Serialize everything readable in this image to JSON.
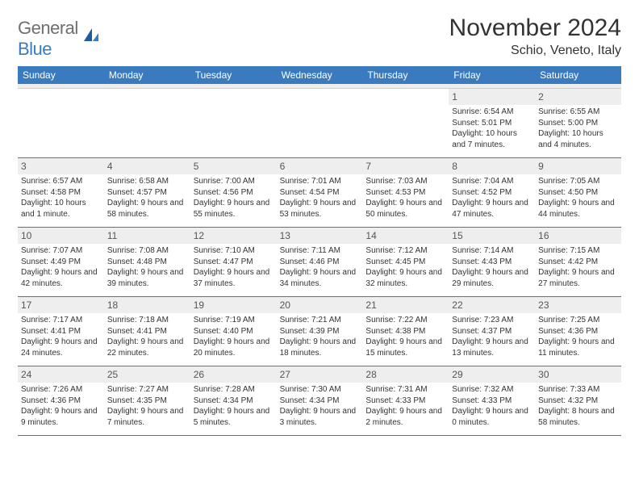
{
  "brand": {
    "name_main": "General",
    "name_sub": "Blue",
    "icon_color_dark": "#1f5c9e",
    "icon_color_light": "#3a7bbf"
  },
  "title": {
    "month": "November 2024",
    "location": "Schio, Veneto, Italy"
  },
  "colors": {
    "header_bg": "#3a7bbf",
    "header_text": "#ffffff",
    "daynum_bg": "#eeeeee",
    "daynum_text": "#555555",
    "body_text": "#333333",
    "row_divider": "#3a7bbf"
  },
  "weekdays": [
    "Sunday",
    "Monday",
    "Tuesday",
    "Wednesday",
    "Thursday",
    "Friday",
    "Saturday"
  ],
  "weeks": [
    [
      null,
      null,
      null,
      null,
      null,
      {
        "n": "1",
        "sunrise": "Sunrise: 6:54 AM",
        "sunset": "Sunset: 5:01 PM",
        "daylight": "Daylight: 10 hours and 7 minutes."
      },
      {
        "n": "2",
        "sunrise": "Sunrise: 6:55 AM",
        "sunset": "Sunset: 5:00 PM",
        "daylight": "Daylight: 10 hours and 4 minutes."
      }
    ],
    [
      {
        "n": "3",
        "sunrise": "Sunrise: 6:57 AM",
        "sunset": "Sunset: 4:58 PM",
        "daylight": "Daylight: 10 hours and 1 minute."
      },
      {
        "n": "4",
        "sunrise": "Sunrise: 6:58 AM",
        "sunset": "Sunset: 4:57 PM",
        "daylight": "Daylight: 9 hours and 58 minutes."
      },
      {
        "n": "5",
        "sunrise": "Sunrise: 7:00 AM",
        "sunset": "Sunset: 4:56 PM",
        "daylight": "Daylight: 9 hours and 55 minutes."
      },
      {
        "n": "6",
        "sunrise": "Sunrise: 7:01 AM",
        "sunset": "Sunset: 4:54 PM",
        "daylight": "Daylight: 9 hours and 53 minutes."
      },
      {
        "n": "7",
        "sunrise": "Sunrise: 7:03 AM",
        "sunset": "Sunset: 4:53 PM",
        "daylight": "Daylight: 9 hours and 50 minutes."
      },
      {
        "n": "8",
        "sunrise": "Sunrise: 7:04 AM",
        "sunset": "Sunset: 4:52 PM",
        "daylight": "Daylight: 9 hours and 47 minutes."
      },
      {
        "n": "9",
        "sunrise": "Sunrise: 7:05 AM",
        "sunset": "Sunset: 4:50 PM",
        "daylight": "Daylight: 9 hours and 44 minutes."
      }
    ],
    [
      {
        "n": "10",
        "sunrise": "Sunrise: 7:07 AM",
        "sunset": "Sunset: 4:49 PM",
        "daylight": "Daylight: 9 hours and 42 minutes."
      },
      {
        "n": "11",
        "sunrise": "Sunrise: 7:08 AM",
        "sunset": "Sunset: 4:48 PM",
        "daylight": "Daylight: 9 hours and 39 minutes."
      },
      {
        "n": "12",
        "sunrise": "Sunrise: 7:10 AM",
        "sunset": "Sunset: 4:47 PM",
        "daylight": "Daylight: 9 hours and 37 minutes."
      },
      {
        "n": "13",
        "sunrise": "Sunrise: 7:11 AM",
        "sunset": "Sunset: 4:46 PM",
        "daylight": "Daylight: 9 hours and 34 minutes."
      },
      {
        "n": "14",
        "sunrise": "Sunrise: 7:12 AM",
        "sunset": "Sunset: 4:45 PM",
        "daylight": "Daylight: 9 hours and 32 minutes."
      },
      {
        "n": "15",
        "sunrise": "Sunrise: 7:14 AM",
        "sunset": "Sunset: 4:43 PM",
        "daylight": "Daylight: 9 hours and 29 minutes."
      },
      {
        "n": "16",
        "sunrise": "Sunrise: 7:15 AM",
        "sunset": "Sunset: 4:42 PM",
        "daylight": "Daylight: 9 hours and 27 minutes."
      }
    ],
    [
      {
        "n": "17",
        "sunrise": "Sunrise: 7:17 AM",
        "sunset": "Sunset: 4:41 PM",
        "daylight": "Daylight: 9 hours and 24 minutes."
      },
      {
        "n": "18",
        "sunrise": "Sunrise: 7:18 AM",
        "sunset": "Sunset: 4:41 PM",
        "daylight": "Daylight: 9 hours and 22 minutes."
      },
      {
        "n": "19",
        "sunrise": "Sunrise: 7:19 AM",
        "sunset": "Sunset: 4:40 PM",
        "daylight": "Daylight: 9 hours and 20 minutes."
      },
      {
        "n": "20",
        "sunrise": "Sunrise: 7:21 AM",
        "sunset": "Sunset: 4:39 PM",
        "daylight": "Daylight: 9 hours and 18 minutes."
      },
      {
        "n": "21",
        "sunrise": "Sunrise: 7:22 AM",
        "sunset": "Sunset: 4:38 PM",
        "daylight": "Daylight: 9 hours and 15 minutes."
      },
      {
        "n": "22",
        "sunrise": "Sunrise: 7:23 AM",
        "sunset": "Sunset: 4:37 PM",
        "daylight": "Daylight: 9 hours and 13 minutes."
      },
      {
        "n": "23",
        "sunrise": "Sunrise: 7:25 AM",
        "sunset": "Sunset: 4:36 PM",
        "daylight": "Daylight: 9 hours and 11 minutes."
      }
    ],
    [
      {
        "n": "24",
        "sunrise": "Sunrise: 7:26 AM",
        "sunset": "Sunset: 4:36 PM",
        "daylight": "Daylight: 9 hours and 9 minutes."
      },
      {
        "n": "25",
        "sunrise": "Sunrise: 7:27 AM",
        "sunset": "Sunset: 4:35 PM",
        "daylight": "Daylight: 9 hours and 7 minutes."
      },
      {
        "n": "26",
        "sunrise": "Sunrise: 7:28 AM",
        "sunset": "Sunset: 4:34 PM",
        "daylight": "Daylight: 9 hours and 5 minutes."
      },
      {
        "n": "27",
        "sunrise": "Sunrise: 7:30 AM",
        "sunset": "Sunset: 4:34 PM",
        "daylight": "Daylight: 9 hours and 3 minutes."
      },
      {
        "n": "28",
        "sunrise": "Sunrise: 7:31 AM",
        "sunset": "Sunset: 4:33 PM",
        "daylight": "Daylight: 9 hours and 2 minutes."
      },
      {
        "n": "29",
        "sunrise": "Sunrise: 7:32 AM",
        "sunset": "Sunset: 4:33 PM",
        "daylight": "Daylight: 9 hours and 0 minutes."
      },
      {
        "n": "30",
        "sunrise": "Sunrise: 7:33 AM",
        "sunset": "Sunset: 4:32 PM",
        "daylight": "Daylight: 8 hours and 58 minutes."
      }
    ]
  ]
}
